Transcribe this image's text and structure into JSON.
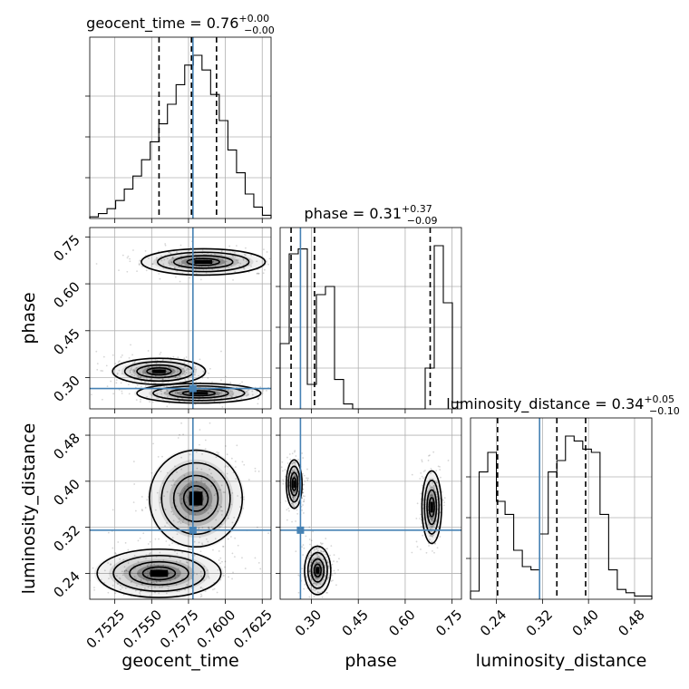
{
  "chart_data": {
    "type": "corner",
    "parameters": [
      "geocent_time",
      "phase",
      "luminosity_distance"
    ],
    "axis_labels": [
      "geocent_time",
      "phase",
      "luminosity_distance"
    ],
    "truth_color": "#4682b4",
    "grid": true,
    "titles": [
      {
        "param": "geocent_time",
        "median": "0.76",
        "plus": "+0.00",
        "minus": "−0.00"
      },
      {
        "param": "phase",
        "median": "0.31",
        "plus": "+0.37",
        "minus": "−0.09"
      },
      {
        "param": "luminosity_distance",
        "median": "0.34",
        "plus": "+0.05",
        "minus": "−0.10"
      }
    ],
    "ranges": {
      "geocent_time": [
        0.7508,
        0.7631
      ],
      "phase": [
        0.2,
        0.78
      ],
      "luminosity_distance": [
        0.195,
        0.51
      ]
    },
    "ticks": {
      "geocent_time": {
        "values": [
          0.7525,
          0.755,
          0.7575,
          0.76,
          0.7625
        ],
        "labels": [
          "0.7525",
          "0.7550",
          "0.7575",
          "0.7600",
          "0.7625"
        ]
      },
      "phase": {
        "values": [
          0.3,
          0.45,
          0.6,
          0.75
        ],
        "labels": [
          "0.30",
          "0.45",
          "0.60",
          "0.75"
        ]
      },
      "luminosity_distance": {
        "values": [
          0.24,
          0.32,
          0.4,
          0.48
        ],
        "labels": [
          "0.24",
          "0.32",
          "0.40",
          "0.48"
        ]
      }
    },
    "truths": {
      "geocent_time": 0.7578,
      "phase": 0.265,
      "luminosity_distance": 0.315
    },
    "quantiles": {
      "geocent_time": [
        0.7555,
        0.7577,
        0.7594
      ],
      "phase": [
        0.235,
        0.31,
        0.68
      ],
      "luminosity_distance": [
        0.242,
        0.345,
        0.395
      ]
    },
    "hist1d": {
      "geocent_time": [
        1,
        3,
        6,
        11,
        18,
        26,
        36,
        47,
        58,
        70,
        82,
        94,
        100,
        91,
        76,
        60,
        42,
        28,
        15,
        7,
        2
      ],
      "phase": [
        40,
        95,
        98,
        15,
        70,
        75,
        18,
        3,
        0,
        0,
        0,
        0,
        0,
        0,
        0,
        0,
        25,
        100,
        65,
        4
      ],
      "luminosity_distance": [
        5,
        78,
        90,
        60,
        52,
        30,
        20,
        18,
        40,
        78,
        85,
        100,
        97,
        92,
        90,
        52,
        18,
        6,
        4,
        2,
        2
      ]
    },
    "hist2d": [
      {
        "x": "geocent_time",
        "y": "phase",
        "modes": [
          {
            "center": [
              0.7585,
              0.67
            ],
            "spread": [
              0.002,
              0.02
            ]
          },
          {
            "center": [
              0.7555,
              0.32
            ],
            "spread": [
              0.0015,
              0.02
            ]
          },
          {
            "center": [
              0.7582,
              0.25
            ],
            "spread": [
              0.002,
              0.015
            ]
          }
        ]
      },
      {
        "x": "geocent_time",
        "y": "luminosity_distance",
        "modes": [
          {
            "center": [
              0.758,
              0.37
            ],
            "spread": [
              0.0015,
              0.04
            ]
          },
          {
            "center": [
              0.7555,
              0.24
            ],
            "spread": [
              0.002,
              0.02
            ]
          }
        ]
      },
      {
        "x": "phase",
        "y": "luminosity_distance",
        "modes": [
          {
            "center": [
              0.245,
              0.395
            ],
            "spread": [
              0.012,
              0.02
            ]
          },
          {
            "center": [
              0.685,
              0.355
            ],
            "spread": [
              0.015,
              0.03
            ]
          },
          {
            "center": [
              0.32,
              0.245
            ],
            "spread": [
              0.02,
              0.02
            ]
          }
        ]
      }
    ]
  }
}
